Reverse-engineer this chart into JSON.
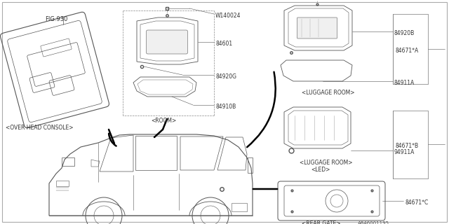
{
  "bg_color": "#ffffff",
  "line_color": "#555555",
  "text_color": "#333333",
  "border_color": "#999999",
  "fig_width": 6.4,
  "fig_height": 3.2,
  "dpi": 100,
  "parts": {
    "FIG930": "FIG.930",
    "W140024": "W140024",
    "p84601": "84601",
    "p84920G": "84920G",
    "p84910B": "84910B",
    "p84671A": "84671*A",
    "p84920B": "84920B",
    "p84911A_top": "84911A",
    "p84671B": "84671*B",
    "p84911A_bot": "94911A",
    "p84671C": "84671*C",
    "drawing_num": "A846001195"
  },
  "labels": {
    "ohc": "<OVER HEAD CONSOLE>",
    "room": "<ROOM>",
    "lug_top": "<LUGGAGE ROOM>",
    "lug_bot_1": "<LUGGAGE ROOM>",
    "lug_bot_2": "<LED>",
    "rear_gate": "<REAR GATE>"
  }
}
